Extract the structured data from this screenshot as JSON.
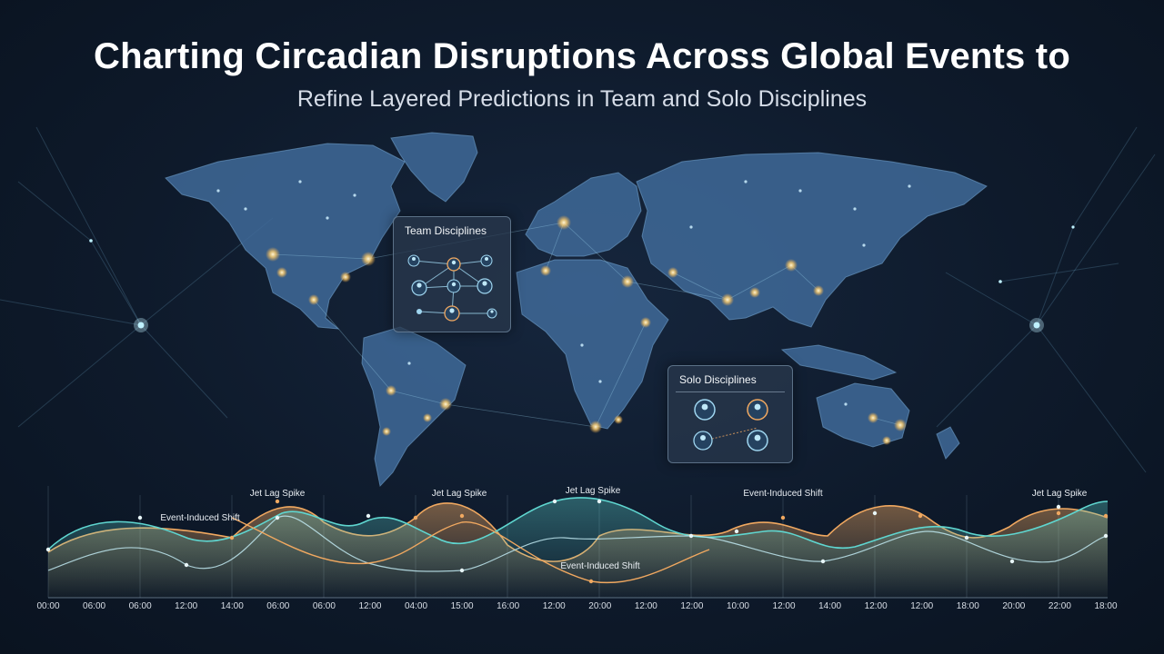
{
  "title": "Charting Circadian Disruptions Across Global Events to",
  "subtitle": "Refine Layered Predictions in Team and Solo Disciplines",
  "panels": {
    "team": {
      "title": "Team Disciplines"
    },
    "solo": {
      "title": "Solo Disciplines"
    }
  },
  "timeline": {
    "ticks": [
      "00:00",
      "06:00",
      "06:00",
      "12:00",
      "14:00",
      "06:00",
      "06:00",
      "12:00",
      "04:00",
      "15:00",
      "16:00",
      "12:00",
      "20:00",
      "12:00",
      "12:00",
      "10:00",
      "12:00",
      "14:00",
      "12:00",
      "12:00",
      "18:00",
      "20:00",
      "22:00",
      "18:00"
    ],
    "annotations": [
      {
        "text": "Event-Induced Shift"
      },
      {
        "text": "Jet Lag Spike"
      },
      {
        "text": "Jet Lag Spike"
      },
      {
        "text": "Jet Lag Spike"
      },
      {
        "text": "Event-Induced Shift"
      },
      {
        "text": "Event-Induced Shift"
      },
      {
        "text": "Jet Lag Spike"
      }
    ]
  },
  "colors": {
    "teal": "#5fd6d0",
    "orange": "#f0a860",
    "map": "#3f6a99",
    "glow": "#ffd47a"
  }
}
